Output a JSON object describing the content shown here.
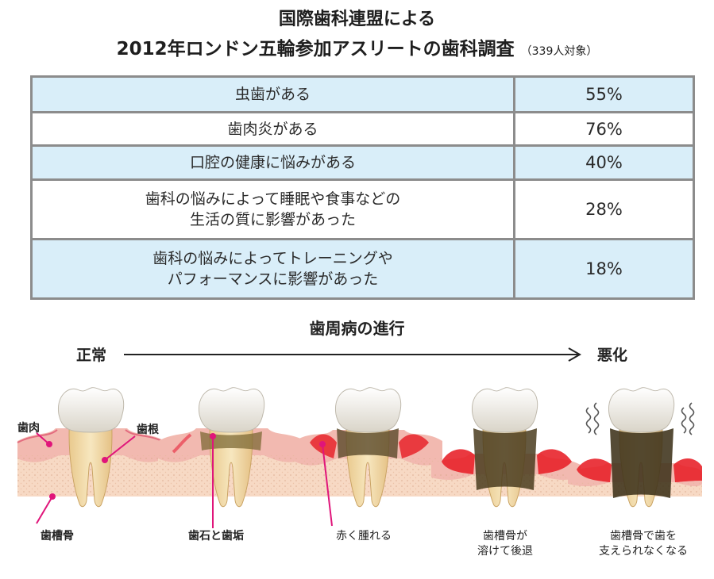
{
  "title": {
    "line1": "国際歯科連盟による",
    "line2": "2012年ロンドン五輪参加アスリートの歯科調査",
    "note": "（339人対象）"
  },
  "survey": {
    "rows": [
      {
        "label": "虫歯がある",
        "value": "55%"
      },
      {
        "label": "歯肉炎がある",
        "value": "76%"
      },
      {
        "label": "口腔の健康に悩みがある",
        "value": "40%"
      },
      {
        "label": "歯科の悩みによって睡眠や食事などの\n生活の質に影響があった",
        "value": "28%"
      },
      {
        "label": "歯科の悩みによってトレーニングや\nパフォーマンスに影響があった",
        "value": "18%"
      }
    ]
  },
  "progression": {
    "title": "歯周病の進行",
    "start_label": "正常",
    "end_label": "悪化",
    "part_labels": {
      "gum": "歯肉",
      "root": "歯根",
      "bone": "歯槽骨"
    },
    "stages": [
      {
        "caption": "歯槽骨"
      },
      {
        "caption": "歯石と歯垢"
      },
      {
        "caption": "赤く腫れる"
      },
      {
        "caption": "歯槽骨が\n溶けて後退"
      },
      {
        "caption": "歯槽骨で歯を\n支えられなくなる"
      }
    ]
  },
  "colors": {
    "row_blue": "#d9eef9",
    "table_border": "#8c8c8c",
    "gum": "#f2b9b0",
    "inflamed_gum": "#e8232b",
    "bone": "#f7d9c4",
    "tooth_root": "#f2dcab",
    "crown": "#f4f1ea",
    "tartar": "#5a4a2a",
    "leader_line": "#e0157a"
  }
}
